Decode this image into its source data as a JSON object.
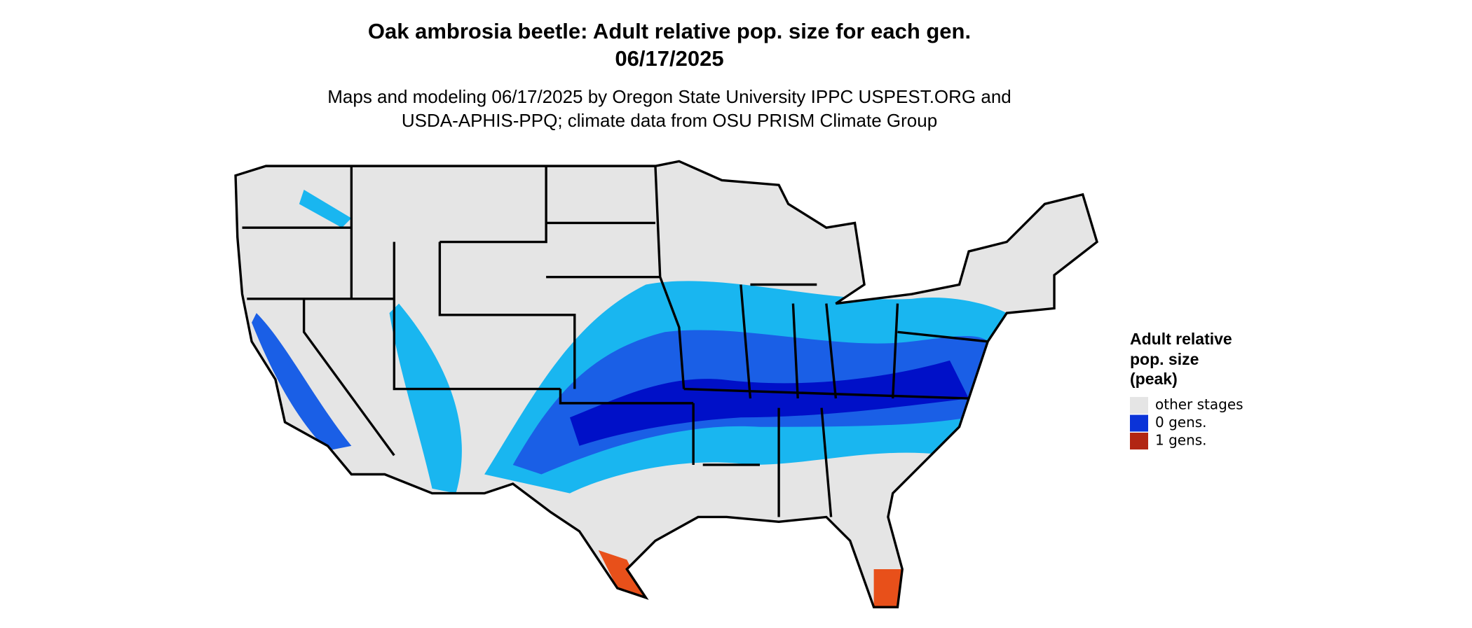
{
  "map": {
    "title": [
      "Oak ambrosia beetle: Adult relative pop. size for each gen.",
      "06/17/2025"
    ],
    "subtitle": [
      "Maps and modeling 06/17/2025 by Oregon State University IPPC USPEST.ORG and",
      "USDA-APHIS-PPQ; climate data from OSU PRISM Climate Group"
    ],
    "legend": {
      "title": [
        "Adult relative",
        "pop. size",
        "(peak)"
      ],
      "entries": [
        {
          "label": "other stages",
          "color": "#e5e5e5"
        },
        {
          "label": "0 gens.",
          "color": "#0a33d8"
        },
        {
          "label": "1 gens.",
          "color": "#b22613"
        }
      ]
    }
  }
}
